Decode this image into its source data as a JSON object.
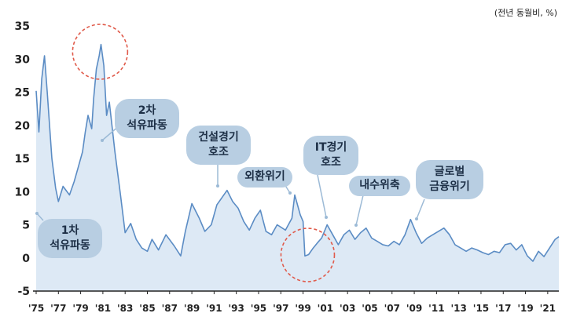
{
  "unit_label": "(전년 동월비, %)",
  "colors": {
    "line": "#5b8cc4",
    "area": "#dde9f5",
    "callout_bg": "#b8cee2",
    "callout_text": "#1d2f46",
    "circle": "#e05a4a",
    "axis": "#222222"
  },
  "callouts": [
    {
      "text": "1차\n석유파동"
    },
    {
      "text": "2차\n석유파동"
    },
    {
      "text": "건설경기\n호조"
    },
    {
      "text": "외환위기"
    },
    {
      "text": "IT경기\n호조"
    },
    {
      "text": "내수위축"
    },
    {
      "text": "글로벌\n금융위기"
    }
  ],
  "chart_data": {
    "type": "area",
    "title": "",
    "xlabel": "",
    "ylabel": "",
    "ylim": [
      -5,
      35
    ],
    "yticks": [
      "35",
      "30",
      "25",
      "20",
      "15",
      "10",
      "5",
      "0",
      "-5"
    ],
    "xticks": [
      "'75",
      "'77",
      "'79",
      "'81",
      "'83",
      "'85",
      "'87",
      "'89",
      "'91",
      "'93",
      "'95",
      "'97",
      "'99",
      "'01",
      "'03",
      "'05",
      "'07",
      "'09",
      "'11",
      "'13",
      "'15",
      "'17",
      "'19",
      "'21"
    ],
    "xlim": [
      "1975-01",
      "2022-01"
    ],
    "grid": false,
    "highlight_circles": [
      "1980-10",
      "1999-06"
    ],
    "series": [
      {
        "points": [
          [
            "1975-01",
            25.2
          ],
          [
            "1975-04",
            19.0
          ],
          [
            "1975-07",
            27.0
          ],
          [
            "1975-10",
            30.5
          ],
          [
            "1976-01",
            25.0
          ],
          [
            "1976-06",
            15.0
          ],
          [
            "1976-10",
            10.5
          ],
          [
            "1977-01",
            8.5
          ],
          [
            "1977-06",
            10.8
          ],
          [
            "1978-01",
            9.5
          ],
          [
            "1978-06",
            11.5
          ],
          [
            "1978-10",
            13.5
          ],
          [
            "1979-03",
            16.0
          ],
          [
            "1979-06",
            19.0
          ],
          [
            "1979-09",
            21.5
          ],
          [
            "1980-01",
            19.5
          ],
          [
            "1980-03",
            24.0
          ],
          [
            "1980-06",
            28.5
          ],
          [
            "1980-09",
            30.5
          ],
          [
            "1980-11",
            32.2
          ],
          [
            "1981-02",
            29.0
          ],
          [
            "1981-05",
            21.5
          ],
          [
            "1981-08",
            23.5
          ],
          [
            "1982-02",
            16.0
          ],
          [
            "1982-08",
            9.5
          ],
          [
            "1983-01",
            3.8
          ],
          [
            "1983-07",
            5.2
          ],
          [
            "1984-01",
            2.8
          ],
          [
            "1984-07",
            1.5
          ],
          [
            "1985-01",
            1.0
          ],
          [
            "1985-06",
            2.8
          ],
          [
            "1986-01",
            1.2
          ],
          [
            "1986-09",
            3.5
          ],
          [
            "1987-06",
            1.8
          ],
          [
            "1988-01",
            0.3
          ],
          [
            "1988-06",
            4.0
          ],
          [
            "1989-01",
            8.2
          ],
          [
            "1989-09",
            6.0
          ],
          [
            "1990-03",
            4.0
          ],
          [
            "1990-10",
            5.0
          ],
          [
            "1991-04",
            8.0
          ],
          [
            "1991-09",
            9.0
          ],
          [
            "1992-03",
            10.2
          ],
          [
            "1992-09",
            8.5
          ],
          [
            "1993-03",
            7.5
          ],
          [
            "1993-09",
            5.5
          ],
          [
            "1994-03",
            4.2
          ],
          [
            "1994-09",
            6.0
          ],
          [
            "1995-03",
            7.2
          ],
          [
            "1995-09",
            4.0
          ],
          [
            "1996-03",
            3.5
          ],
          [
            "1996-09",
            5.0
          ],
          [
            "1997-06",
            4.2
          ],
          [
            "1998-01",
            6.0
          ],
          [
            "1998-04",
            9.5
          ],
          [
            "1998-10",
            6.5
          ],
          [
            "1999-01",
            5.5
          ],
          [
            "1999-03",
            0.3
          ],
          [
            "1999-07",
            0.5
          ],
          [
            "1999-12",
            1.5
          ],
          [
            "2000-04",
            2.2
          ],
          [
            "2000-09",
            3.0
          ],
          [
            "2001-03",
            5.0
          ],
          [
            "2001-09",
            3.5
          ],
          [
            "2002-03",
            2.0
          ],
          [
            "2002-09",
            3.5
          ],
          [
            "2003-03",
            4.2
          ],
          [
            "2003-09",
            2.8
          ],
          [
            "2004-03",
            3.8
          ],
          [
            "2004-09",
            4.5
          ],
          [
            "2005-03",
            3.0
          ],
          [
            "2005-09",
            2.5
          ],
          [
            "2006-03",
            2.0
          ],
          [
            "2006-09",
            1.8
          ],
          [
            "2007-03",
            2.5
          ],
          [
            "2007-09",
            2.0
          ],
          [
            "2008-03",
            3.5
          ],
          [
            "2008-09",
            5.8
          ],
          [
            "2009-03",
            3.8
          ],
          [
            "2009-09",
            2.2
          ],
          [
            "2010-03",
            3.0
          ],
          [
            "2010-09",
            3.5
          ],
          [
            "2011-03",
            4.0
          ],
          [
            "2011-09",
            4.5
          ],
          [
            "2012-03",
            3.5
          ],
          [
            "2012-09",
            2.0
          ],
          [
            "2013-03",
            1.5
          ],
          [
            "2013-09",
            1.0
          ],
          [
            "2014-03",
            1.5
          ],
          [
            "2014-09",
            1.2
          ],
          [
            "2015-03",
            0.8
          ],
          [
            "2015-09",
            0.5
          ],
          [
            "2016-03",
            1.0
          ],
          [
            "2016-09",
            0.8
          ],
          [
            "2017-03",
            2.0
          ],
          [
            "2017-09",
            2.2
          ],
          [
            "2018-03",
            1.2
          ],
          [
            "2018-09",
            2.0
          ],
          [
            "2019-03",
            0.3
          ],
          [
            "2019-09",
            -0.5
          ],
          [
            "2020-03",
            1.0
          ],
          [
            "2020-09",
            0.2
          ],
          [
            "2021-03",
            1.5
          ],
          [
            "2021-09",
            2.8
          ],
          [
            "2022-01",
            3.2
          ]
        ]
      }
    ]
  }
}
